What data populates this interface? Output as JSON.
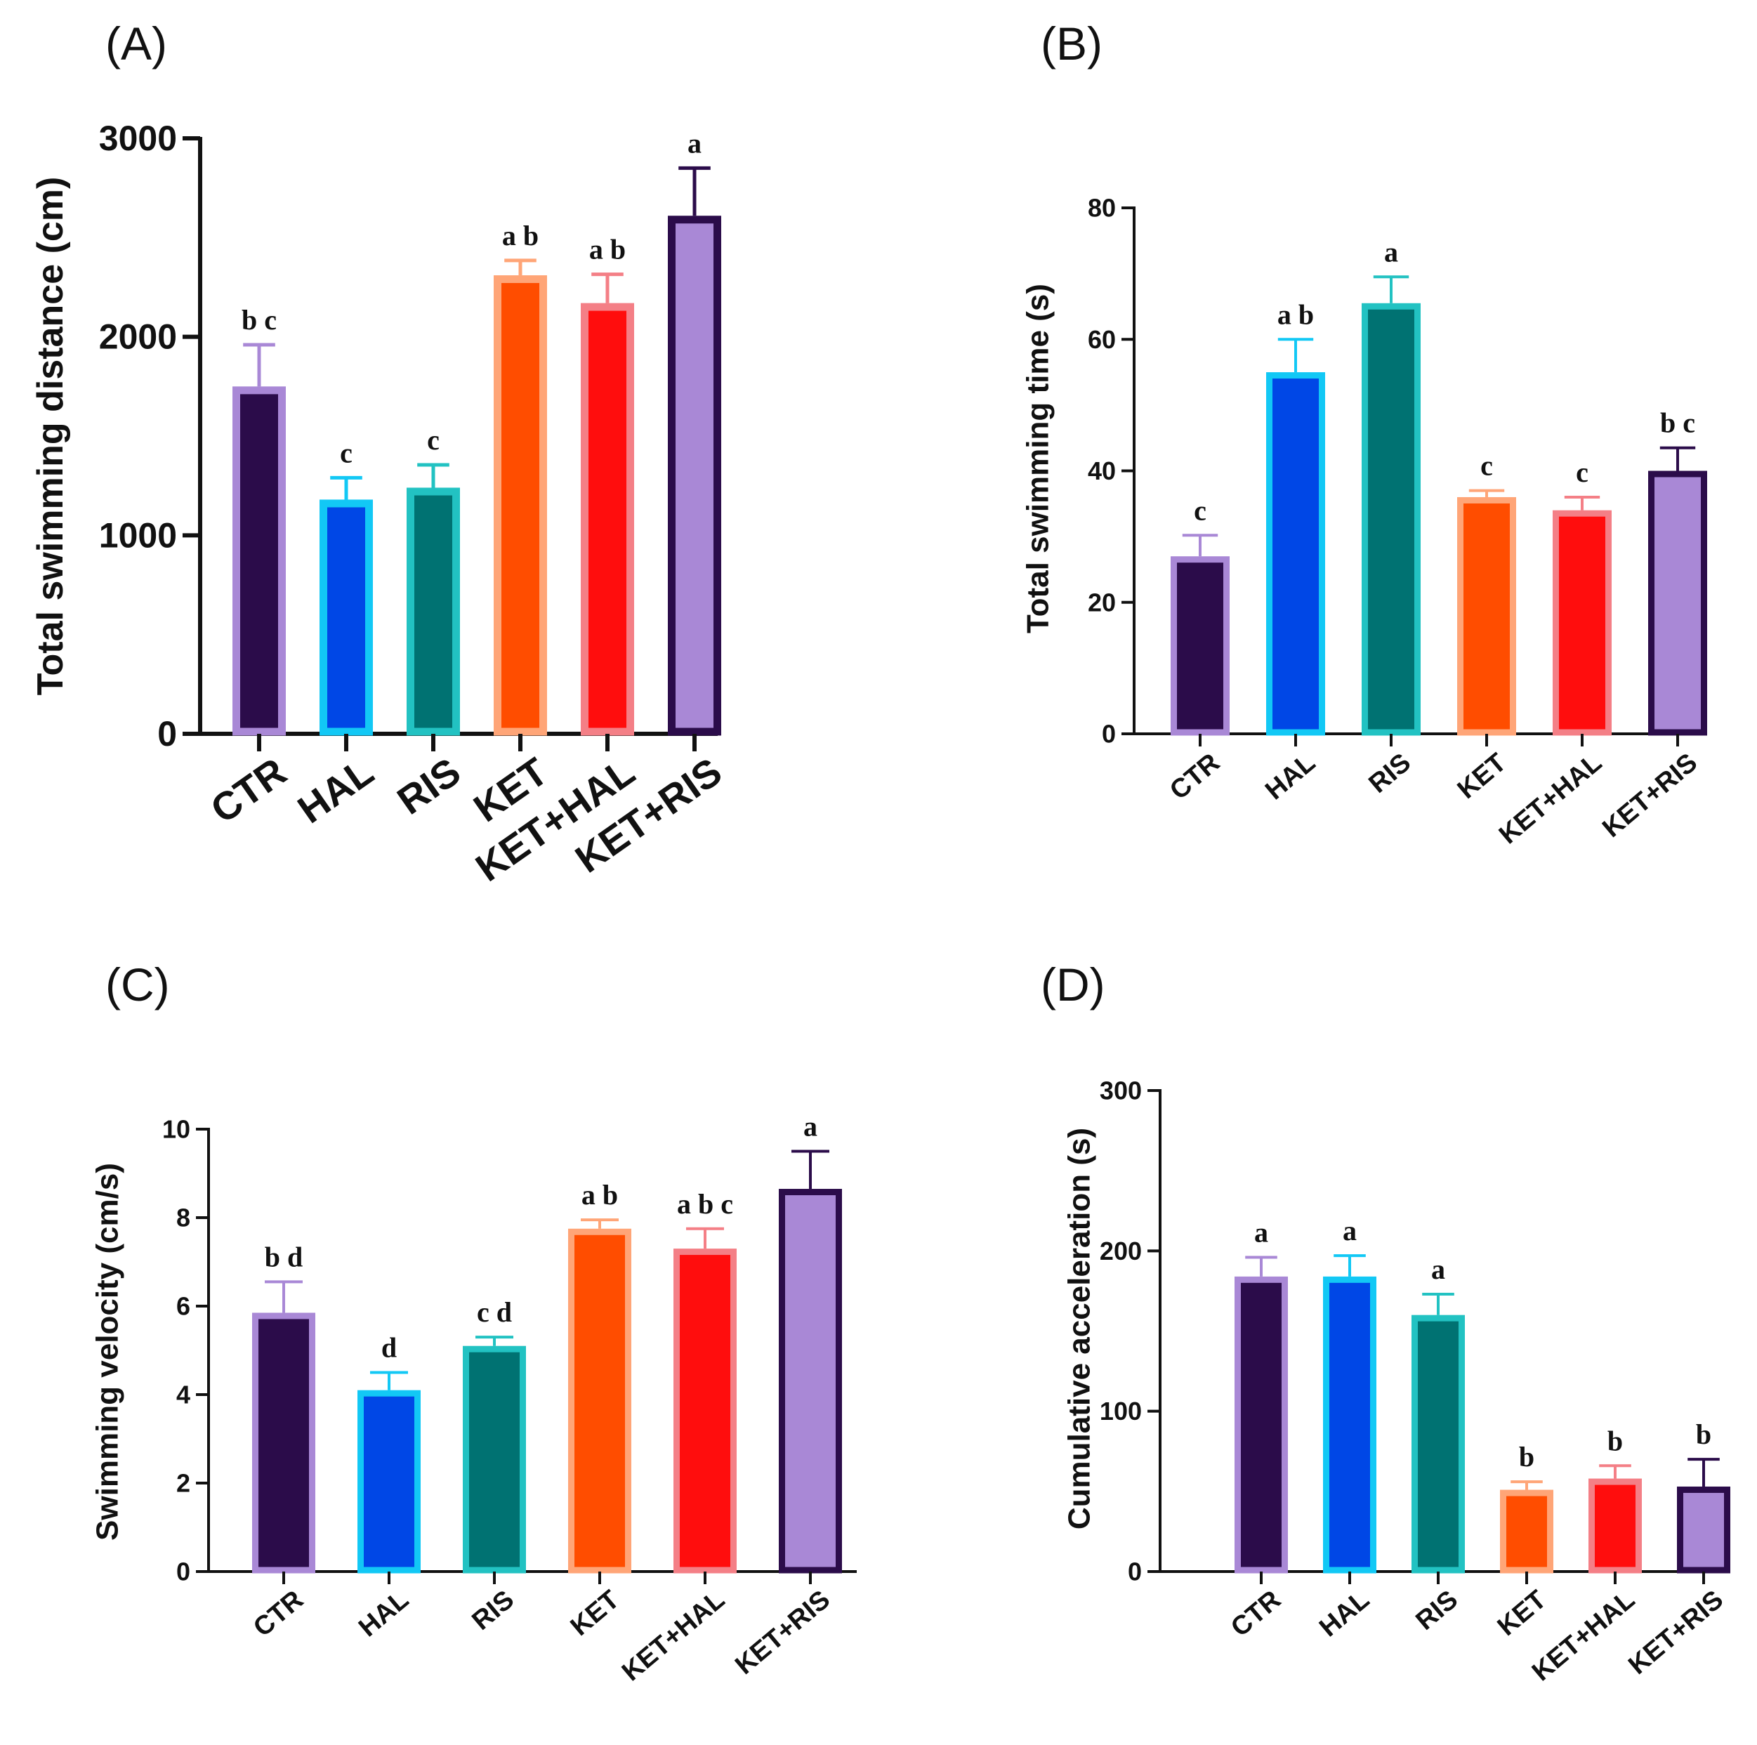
{
  "colors": {
    "CTR": "#2b0c4a",
    "HAL": "#0047e6",
    "RIS": "#007272",
    "KET": "#ff4d00",
    "KET+HAL": "#ff0d0d",
    "KET+RIS": "#a988d6"
  },
  "border_colors": {
    "CTR": "#a988d6",
    "HAL": "#12c8f5",
    "RIS": "#22c2c2",
    "KET": "#ffa577",
    "KET+HAL": "#f47f86",
    "KET+RIS": "#2b0c4a"
  },
  "chart_data": [
    {
      "panel": "(A)",
      "type": "bar",
      "ylabel": "Total swimming distance (cm)",
      "categories": [
        "CTR",
        "HAL",
        "RIS",
        "KET",
        "KET+HAL",
        "KET+RIS"
      ],
      "values": [
        1750,
        1180,
        1240,
        2310,
        2170,
        2610
      ],
      "errors": [
        210,
        110,
        115,
        75,
        145,
        240
      ],
      "significance": [
        "b c",
        "c",
        "c",
        "a b",
        "a b",
        "a"
      ],
      "ylim": [
        0,
        3000
      ],
      "yticks": [
        0,
        1000,
        2000,
        3000
      ]
    },
    {
      "panel": "(B)",
      "type": "bar",
      "ylabel": "Total swimming time (s)",
      "categories": [
        "CTR",
        "HAL",
        "RIS",
        "KET",
        "KET+HAL",
        "KET+RIS"
      ],
      "values": [
        27,
        55,
        65.5,
        36,
        34,
        40
      ],
      "errors": [
        3.2,
        5,
        4,
        1,
        2,
        3.5
      ],
      "significance": [
        "c",
        "a b",
        "a",
        "c",
        "c",
        "b c"
      ],
      "ylim": [
        0,
        80
      ],
      "yticks": [
        0,
        20,
        40,
        60,
        80
      ]
    },
    {
      "panel": "(C)",
      "type": "bar",
      "ylabel": "Swimming velocity (cm/s)",
      "categories": [
        "CTR",
        "HAL",
        "RIS",
        "KET",
        "KET+HAL",
        "KET+RIS"
      ],
      "values": [
        5.85,
        4.1,
        5.1,
        7.75,
        7.3,
        8.65
      ],
      "errors": [
        0.7,
        0.4,
        0.2,
        0.2,
        0.45,
        0.85
      ],
      "significance": [
        "b d",
        "d",
        "c d",
        "a b",
        "a b c",
        "a"
      ],
      "ylim": [
        0,
        10
      ],
      "yticks": [
        0,
        2,
        4,
        6,
        8,
        10
      ]
    },
    {
      "panel": "(D)",
      "type": "bar",
      "ylabel": "Cumulative acceleration (s)",
      "categories": [
        "CTR",
        "HAL",
        "RIS",
        "KET",
        "KET+HAL",
        "KET+RIS"
      ],
      "values": [
        184,
        184,
        160,
        51,
        58,
        53
      ],
      "errors": [
        12,
        13,
        13,
        5,
        8,
        17
      ],
      "significance": [
        "a",
        "a",
        "a",
        "b",
        "b",
        "b"
      ],
      "ylim": [
        0,
        300
      ],
      "yticks": [
        0,
        100,
        200,
        300
      ]
    }
  ]
}
